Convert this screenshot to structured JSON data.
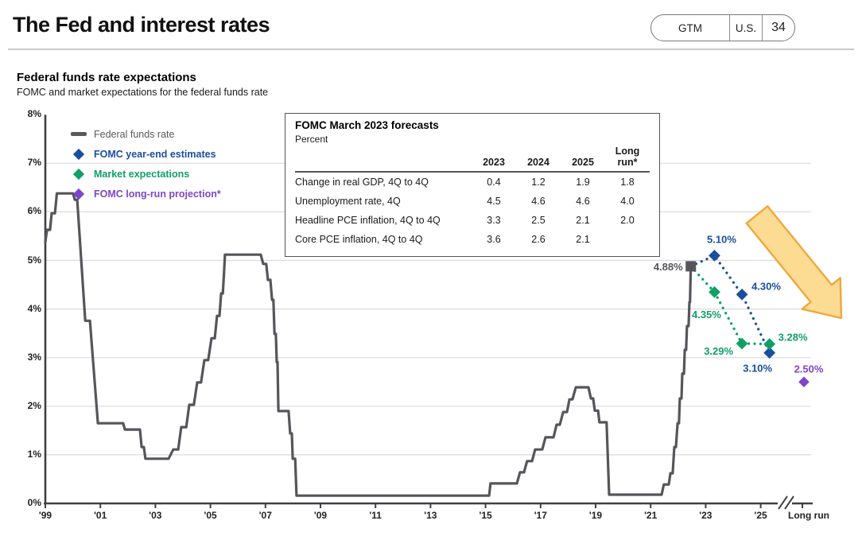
{
  "header": {
    "title": "The Fed and interest rates",
    "pill": {
      "gtm": "GTM",
      "region": "U.S.",
      "page": "34"
    }
  },
  "chart": {
    "title": "Federal funds rate expectations",
    "subtitle": "FOMC and market expectations for the federal funds rate",
    "legend": [
      {
        "label": "Federal funds rate",
        "color": "#58595B",
        "marker": "line"
      },
      {
        "label": "FOMC year-end estimates",
        "color": "#1A4F9E",
        "marker": "diamond"
      },
      {
        "label": "Market expectations",
        "color": "#10A066",
        "marker": "diamond"
      },
      {
        "label": "FOMC long-run projection*",
        "color": "#7D45C9",
        "marker": "diamond"
      }
    ]
  },
  "table": {
    "title": "FOMC March 2023 forecasts",
    "subtitle": "Percent",
    "columns": [
      "2023",
      "2024",
      "2025",
      "Long run*"
    ],
    "rows": [
      {
        "label": "Change in real GDP, 4Q to 4Q",
        "values": [
          "0.4",
          "1.2",
          "1.9",
          "1.8"
        ]
      },
      {
        "label": "Unemployment rate, 4Q",
        "values": [
          "4.5",
          "4.6",
          "4.6",
          "4.0"
        ]
      },
      {
        "label": "Headline PCE inflation, 4Q to 4Q",
        "values": [
          "3.3",
          "2.5",
          "2.1",
          "2.0"
        ]
      },
      {
        "label": "Core PCE inflation, 4Q to 4Q",
        "values": [
          "3.6",
          "2.6",
          "2.1",
          ""
        ]
      }
    ]
  },
  "chart_data": {
    "type": "line",
    "title": "Federal funds rate expectations",
    "subtitle": "FOMC and market expectations for the federal funds rate",
    "ylim": [
      0,
      8
    ],
    "yticks": [
      "8%",
      "7%",
      "6%",
      "5%",
      "4%",
      "3%",
      "2%",
      "1%",
      "0%"
    ],
    "x_tick_years": [
      1999,
      2001,
      2003,
      2005,
      2007,
      2009,
      2011,
      2013,
      2015,
      2017,
      2019,
      2021,
      2023,
      2025
    ],
    "x_tick_labels": [
      "'99",
      "'01",
      "'03",
      "'05",
      "'07",
      "'09",
      "'11",
      "'13",
      "'15",
      "'17",
      "'19",
      "'21",
      "'23",
      "'25"
    ],
    "x_longrun_label": "Long run",
    "grid": true,
    "axis_break_before_longrun": true,
    "series": {
      "fed_funds_rate": {
        "name": "Federal funds rate",
        "color": "#54565A",
        "points": [
          [
            1999.0,
            5.38
          ],
          [
            1999.06,
            5.63
          ],
          [
            1999.17,
            5.63
          ],
          [
            1999.23,
            5.97
          ],
          [
            1999.35,
            5.97
          ],
          [
            1999.42,
            6.38
          ],
          [
            2000.01,
            6.38
          ],
          [
            2000.07,
            6.25
          ],
          [
            2000.16,
            6.25
          ],
          [
            2000.45,
            3.76
          ],
          [
            2000.62,
            3.76
          ],
          [
            2000.91,
            1.65
          ],
          [
            2001.83,
            1.65
          ],
          [
            2001.89,
            1.52
          ],
          [
            2002.44,
            1.52
          ],
          [
            2002.5,
            1.16
          ],
          [
            2002.58,
            1.16
          ],
          [
            2002.64,
            0.92
          ],
          [
            2003.48,
            0.92
          ],
          [
            2003.65,
            1.11
          ],
          [
            2003.83,
            1.11
          ],
          [
            2003.94,
            1.57
          ],
          [
            2004.12,
            1.57
          ],
          [
            2004.23,
            2.03
          ],
          [
            2004.4,
            2.03
          ],
          [
            2004.52,
            2.49
          ],
          [
            2004.66,
            2.49
          ],
          [
            2004.78,
            2.95
          ],
          [
            2004.92,
            2.95
          ],
          [
            2005.04,
            3.4
          ],
          [
            2005.16,
            3.4
          ],
          [
            2005.24,
            3.86
          ],
          [
            2005.33,
            3.86
          ],
          [
            2005.39,
            4.32
          ],
          [
            2005.45,
            4.32
          ],
          [
            2005.5,
            4.8
          ],
          [
            2005.53,
            5.12
          ],
          [
            2006.83,
            5.12
          ],
          [
            2006.92,
            4.93
          ],
          [
            2007.03,
            4.93
          ],
          [
            2007.09,
            4.6
          ],
          [
            2007.18,
            4.6
          ],
          [
            2007.24,
            4.19
          ],
          [
            2007.29,
            4.19
          ],
          [
            2007.33,
            3.49
          ],
          [
            2007.38,
            3.49
          ],
          [
            2007.41,
            2.91
          ],
          [
            2007.44,
            2.91
          ],
          [
            2007.47,
            1.9
          ],
          [
            2007.84,
            1.9
          ],
          [
            2007.9,
            1.44
          ],
          [
            2007.96,
            1.44
          ],
          [
            2007.99,
            0.92
          ],
          [
            2008.08,
            0.92
          ],
          [
            2008.13,
            0.16
          ],
          [
            2015.13,
            0.16
          ],
          [
            2015.18,
            0.41
          ],
          [
            2016.14,
            0.41
          ],
          [
            2016.25,
            0.64
          ],
          [
            2016.4,
            0.64
          ],
          [
            2016.51,
            0.87
          ],
          [
            2016.69,
            0.87
          ],
          [
            2016.8,
            1.11
          ],
          [
            2017.06,
            1.11
          ],
          [
            2017.18,
            1.36
          ],
          [
            2017.47,
            1.36
          ],
          [
            2017.58,
            1.62
          ],
          [
            2017.7,
            1.62
          ],
          [
            2017.82,
            1.88
          ],
          [
            2017.96,
            1.88
          ],
          [
            2018.05,
            2.14
          ],
          [
            2018.16,
            2.14
          ],
          [
            2018.28,
            2.39
          ],
          [
            2018.74,
            2.39
          ],
          [
            2018.83,
            2.16
          ],
          [
            2018.91,
            2.16
          ],
          [
            2018.97,
            1.91
          ],
          [
            2019.09,
            1.91
          ],
          [
            2019.14,
            1.67
          ],
          [
            2019.4,
            1.67
          ],
          [
            2019.49,
            0.18
          ],
          [
            2021.4,
            0.18
          ],
          [
            2021.48,
            0.39
          ],
          [
            2021.66,
            0.39
          ],
          [
            2021.72,
            0.62
          ],
          [
            2021.8,
            0.62
          ],
          [
            2021.86,
            1.16
          ],
          [
            2021.92,
            1.16
          ],
          [
            2021.98,
            1.65
          ],
          [
            2022.03,
            1.65
          ],
          [
            2022.06,
            2.16
          ],
          [
            2022.12,
            2.16
          ],
          [
            2022.15,
            2.67
          ],
          [
            2022.21,
            2.67
          ],
          [
            2022.24,
            3.16
          ],
          [
            2022.29,
            3.16
          ],
          [
            2022.32,
            3.65
          ],
          [
            2022.38,
            3.65
          ],
          [
            2022.41,
            4.14
          ],
          [
            2022.43,
            4.14
          ],
          [
            2022.46,
            4.88
          ]
        ]
      },
      "current_rate": {
        "name": "Federal funds rate (latest)",
        "color": "#54565A",
        "marker": "square",
        "point": [
          2022.46,
          4.88
        ],
        "label": "4.88%"
      },
      "fomc_year_end": {
        "name": "FOMC year-end estimates",
        "color": "#1A4F9E",
        "points": [
          [
            2023,
            5.1
          ],
          [
            2024,
            4.3
          ],
          [
            2025,
            3.1
          ]
        ],
        "labels": [
          "5.10%",
          "4.30%",
          "3.10%"
        ]
      },
      "market_expectations": {
        "name": "Market expectations",
        "color": "#10A066",
        "points": [
          [
            2023,
            4.35
          ],
          [
            2024,
            3.29
          ],
          [
            2025,
            3.28
          ]
        ],
        "labels": [
          "4.35%",
          "3.29%",
          "3.28%"
        ]
      },
      "fomc_long_run": {
        "name": "FOMC long-run projection*",
        "color": "#7D45C9",
        "points": [
          [
            "long_run",
            2.5
          ]
        ],
        "labels": [
          "2.50%"
        ]
      }
    },
    "annotation_arrow": {
      "direction": "down-right",
      "fill": "#FBDC92",
      "stroke": "#EFA73E"
    }
  }
}
